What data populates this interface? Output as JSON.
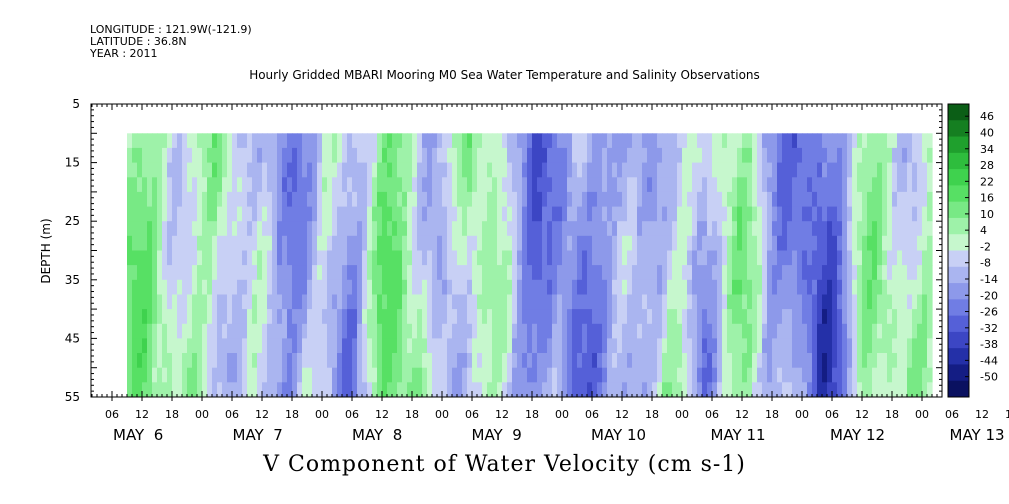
{
  "header": {
    "longitude": "LONGITUDE : 121.9W(-121.9)",
    "latitude": "LATITUDE : 36.8N",
    "year": "YEAR : 2011"
  },
  "chart_data": {
    "type": "heatmap",
    "title": "Hourly Gridded MBARI Mooring M0 Sea Water Temperature and Salinity Observations",
    "xlabel": "V Component of Water Velocity (cm s-1)",
    "ylabel": "DEPTH (m)",
    "ylim": [
      5,
      55
    ],
    "y_inverted": true,
    "y_ticks": [
      5,
      15,
      25,
      35,
      45,
      55
    ],
    "data_depth_range": [
      10,
      55
    ],
    "hour_tick_labels": [
      "06",
      "12",
      "18",
      "00",
      "06",
      "12",
      "18",
      "00",
      "06",
      "12",
      "18",
      "00",
      "06",
      "12",
      "18",
      "00",
      "06",
      "12",
      "18",
      "00",
      "06",
      "12",
      "18",
      "00",
      "06",
      "12",
      "18",
      "00",
      "06",
      "12",
      "18",
      "00"
    ],
    "day_labels": [
      "MAY  6",
      "MAY  7",
      "MAY  8",
      "MAY  9",
      "MAY 10",
      "MAY 11",
      "MAY 12",
      "MAY 13"
    ],
    "colorbar": {
      "tick_labels": [
        "46",
        "40",
        "34",
        "28",
        "22",
        "16",
        "10",
        "4",
        "-2",
        "-8",
        "-14",
        "-20",
        "-26",
        "-32",
        "-38",
        "-44",
        "-50"
      ],
      "range": [
        -50,
        52
      ],
      "colors_high_to_low": [
        "#0b5e16",
        "#157f21",
        "#1fa02d",
        "#2ebd3d",
        "#3fd24e",
        "#57e064",
        "#78e985",
        "#9ef2a9",
        "#c6f7cd",
        "#c8d0f5",
        "#aab5f0",
        "#8d99ea",
        "#707de4",
        "#5560d8",
        "#3c46c4",
        "#2430a8",
        "#141d84",
        "#0a1160"
      ]
    },
    "field_summary": "V velocity vs time (May 6 to May 13, 2011) and depth (10 to 55 m); predominantly positive (green, about 4 to 20 cm/s) with intermittent negative (blue, about -2 to -26 cm/s) bands"
  }
}
